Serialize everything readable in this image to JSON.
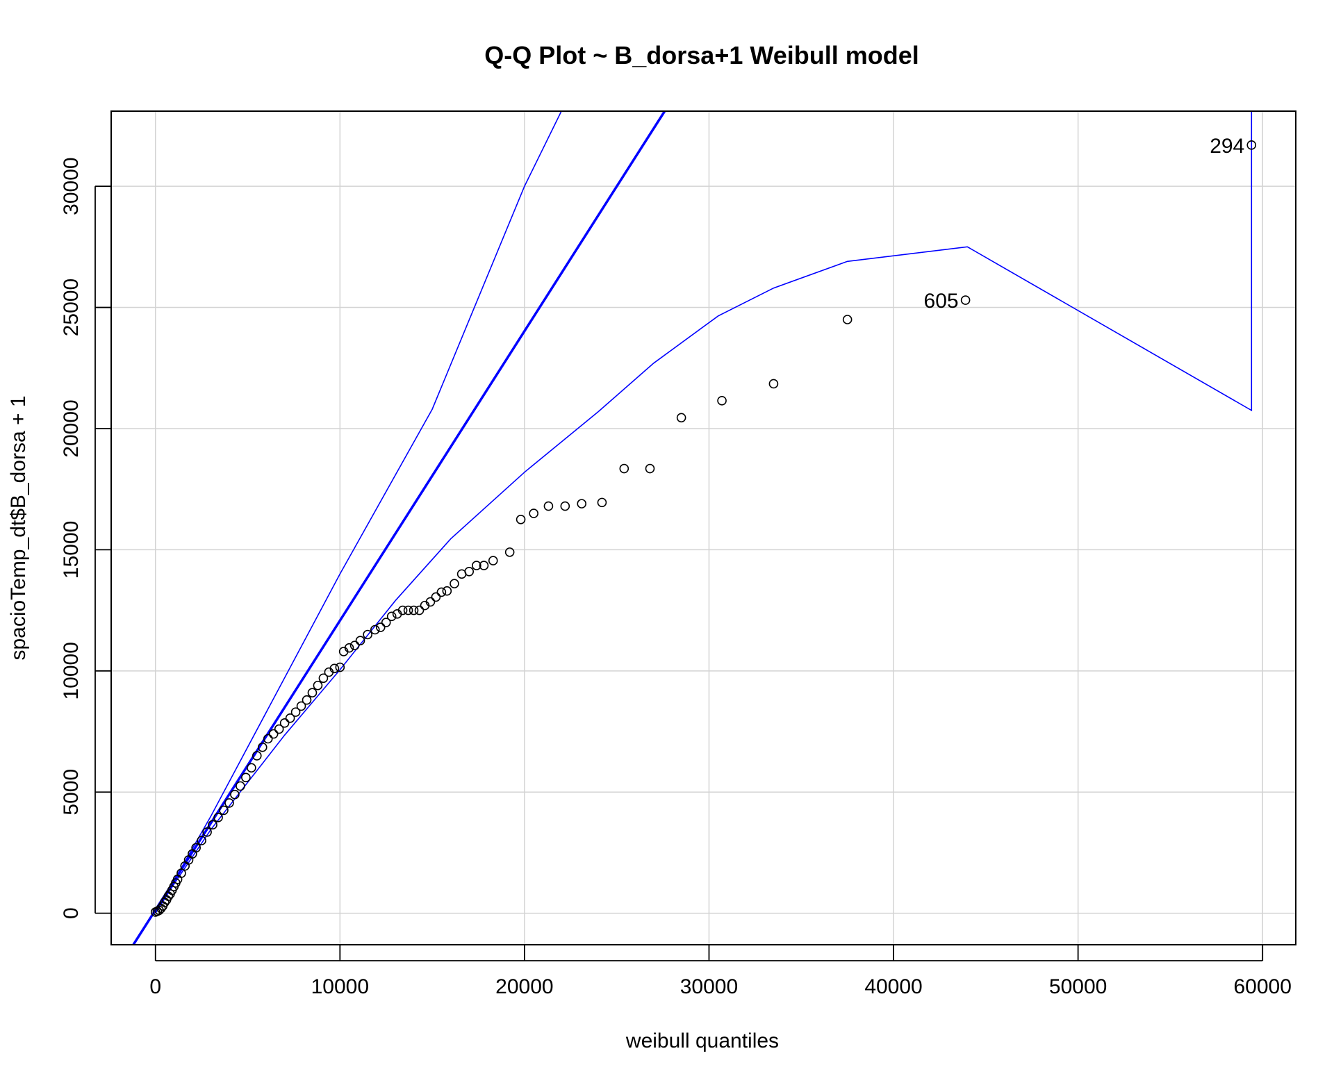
{
  "chart_data": {
    "type": "scatter",
    "title": "Q-Q Plot ~ B_dorsa+1 Weibull model",
    "xlabel": "weibull quantiles",
    "ylabel": "spacioTemp_dt$B_dorsa + 1",
    "xlim": [
      -2400,
      61800
    ],
    "ylim": [
      -1300,
      33100
    ],
    "xticks": [
      0,
      10000,
      20000,
      30000,
      40000,
      50000,
      60000
    ],
    "yticks": [
      0,
      5000,
      10000,
      15000,
      20000,
      25000,
      30000
    ],
    "grid": true,
    "colors": {
      "points": "#000000",
      "reference_line": "#0000ff",
      "envelope": "#0000ff",
      "grid": "#d3d3d3"
    },
    "reference_line": [
      [
        -1200,
        -1300
      ],
      [
        27600,
        33100
      ]
    ],
    "upper_envelope": [
      [
        0,
        0
      ],
      [
        3000,
        4000
      ],
      [
        10000,
        14000
      ],
      [
        15000,
        20800
      ],
      [
        20000,
        30000
      ],
      [
        22000,
        33100
      ]
    ],
    "lower_envelope": [
      [
        0,
        0
      ],
      [
        1000,
        1200
      ],
      [
        3000,
        3450
      ],
      [
        5000,
        5400
      ],
      [
        7000,
        7350
      ],
      [
        10000,
        10050
      ],
      [
        13000,
        12900
      ],
      [
        16000,
        15450
      ],
      [
        20000,
        18200
      ],
      [
        24000,
        20700
      ],
      [
        27000,
        22700
      ],
      [
        30500,
        24650
      ],
      [
        33500,
        25800
      ],
      [
        37500,
        26900
      ],
      [
        44000,
        27500
      ],
      [
        59400,
        20750
      ],
      [
        59400,
        33100
      ]
    ],
    "points": [
      [
        0,
        50
      ],
      [
        100,
        80
      ],
      [
        200,
        120
      ],
      [
        300,
        200
      ],
      [
        400,
        300
      ],
      [
        500,
        450
      ],
      [
        600,
        550
      ],
      [
        700,
        700
      ],
      [
        800,
        800
      ],
      [
        900,
        950
      ],
      [
        1000,
        1100
      ],
      [
        1100,
        1250
      ],
      [
        1200,
        1400
      ],
      [
        1400,
        1650
      ],
      [
        1600,
        1950
      ],
      [
        1800,
        2200
      ],
      [
        2000,
        2450
      ],
      [
        2200,
        2700
      ],
      [
        2500,
        3000
      ],
      [
        2800,
        3350
      ],
      [
        3100,
        3650
      ],
      [
        3400,
        3950
      ],
      [
        3700,
        4250
      ],
      [
        4000,
        4550
      ],
      [
        4300,
        4900
      ],
      [
        4600,
        5250
      ],
      [
        4900,
        5600
      ],
      [
        5200,
        6000
      ],
      [
        5500,
        6500
      ],
      [
        5800,
        6850
      ],
      [
        6100,
        7200
      ],
      [
        6400,
        7400
      ],
      [
        6700,
        7600
      ],
      [
        7000,
        7850
      ],
      [
        7300,
        8050
      ],
      [
        7600,
        8300
      ],
      [
        7900,
        8550
      ],
      [
        8200,
        8800
      ],
      [
        8500,
        9100
      ],
      [
        8800,
        9400
      ],
      [
        9100,
        9700
      ],
      [
        9400,
        9950
      ],
      [
        9700,
        10100
      ],
      [
        10000,
        10150
      ],
      [
        10200,
        10800
      ],
      [
        10500,
        10950
      ],
      [
        10800,
        11050
      ],
      [
        11100,
        11250
      ],
      [
        11500,
        11500
      ],
      [
        11900,
        11700
      ],
      [
        12200,
        11800
      ],
      [
        12500,
        12000
      ],
      [
        12800,
        12250
      ],
      [
        13100,
        12350
      ],
      [
        13400,
        12500
      ],
      [
        13700,
        12500
      ],
      [
        14000,
        12500
      ],
      [
        14300,
        12500
      ],
      [
        14600,
        12700
      ],
      [
        14900,
        12850
      ],
      [
        15200,
        13050
      ],
      [
        15500,
        13250
      ],
      [
        15800,
        13300
      ],
      [
        16200,
        13600
      ],
      [
        16600,
        14000
      ],
      [
        17000,
        14100
      ],
      [
        17400,
        14350
      ],
      [
        17800,
        14350
      ],
      [
        18300,
        14550
      ],
      [
        19200,
        14900
      ],
      [
        19800,
        16250
      ],
      [
        20500,
        16500
      ],
      [
        21300,
        16800
      ],
      [
        22200,
        16800
      ],
      [
        23100,
        16900
      ],
      [
        24200,
        16950
      ],
      [
        25400,
        18350
      ],
      [
        26800,
        18350
      ],
      [
        28500,
        20450
      ],
      [
        30700,
        21150
      ],
      [
        33500,
        21850
      ],
      [
        37500,
        24500
      ],
      [
        43900,
        25300
      ],
      [
        59400,
        31700
      ]
    ],
    "labeled_points": [
      {
        "label": "605",
        "x": 43900,
        "y": 25300
      },
      {
        "label": "294",
        "x": 59400,
        "y": 31700
      }
    ]
  }
}
